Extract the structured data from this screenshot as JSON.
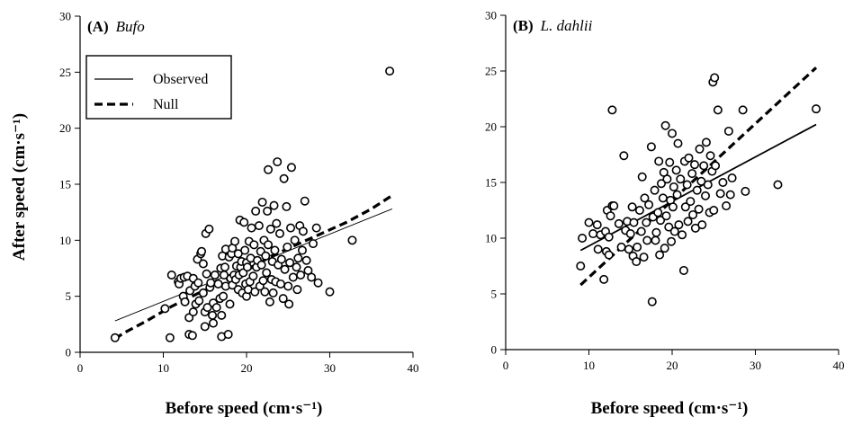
{
  "chart_data": [
    {
      "type": "scatter",
      "panel_label": "(A)",
      "panel_species": "Bufo",
      "xlabel": "Before speed (cm·s⁻¹)",
      "ylabel": "After speed (cm·s⁻¹)",
      "xlim": [
        0,
        40
      ],
      "ylim": [
        0,
        30
      ],
      "x_ticks": [
        "0",
        "10",
        "20",
        "30",
        "40"
      ],
      "y_ticks": [
        "0",
        "5",
        "10",
        "15",
        "20",
        "25",
        "30"
      ],
      "legend": {
        "position": "upper-left",
        "entries": [
          {
            "label": "Observed",
            "style": "solid"
          },
          {
            "label": "Null",
            "style": "dashed"
          }
        ]
      },
      "lines": [
        {
          "label": "Observed",
          "style": "solid",
          "x": [
            4.2,
            37.5
          ],
          "y": [
            2.8,
            12.8
          ]
        },
        {
          "label": "Null",
          "style": "dashed",
          "x": [
            4.2,
            5.2,
            8,
            11,
            14,
            17,
            20,
            23,
            26,
            29,
            32,
            35,
            37.5
          ],
          "y": [
            1.2,
            1.7,
            2.8,
            4.1,
            5.2,
            6.2,
            7.3,
            8.6,
            9.6,
            10.6,
            11.6,
            12.8,
            14.0
          ]
        }
      ],
      "points": [
        [
          4.2,
          1.3
        ],
        [
          10.2,
          3.9
        ],
        [
          10.8,
          1.3
        ],
        [
          11,
          6.9
        ],
        [
          11.8,
          6.3
        ],
        [
          11.9,
          6.1
        ],
        [
          12.1,
          6.6
        ],
        [
          12.4,
          5.0
        ],
        [
          12.5,
          6.7
        ],
        [
          12.6,
          4.5
        ],
        [
          12.9,
          6.8
        ],
        [
          13.1,
          1.6
        ],
        [
          13.1,
          3.1
        ],
        [
          13.2,
          5.5
        ],
        [
          13.5,
          1.5
        ],
        [
          13.6,
          3.6
        ],
        [
          13.6,
          6.6
        ],
        [
          13.8,
          5.9
        ],
        [
          13.9,
          4.3
        ],
        [
          14.1,
          8.3
        ],
        [
          14.2,
          6.2
        ],
        [
          14.3,
          4.6
        ],
        [
          14.5,
          8.8
        ],
        [
          14.6,
          9.0
        ],
        [
          14.8,
          5.3
        ],
        [
          14.8,
          7.9
        ],
        [
          15.0,
          2.3
        ],
        [
          15.0,
          3.6
        ],
        [
          15.1,
          10.6
        ],
        [
          15.2,
          7.0
        ],
        [
          15.3,
          4.0
        ],
        [
          15.5,
          11.0
        ],
        [
          15.6,
          5.8
        ],
        [
          15.7,
          6.2
        ],
        [
          15.9,
          3.3
        ],
        [
          16.0,
          2.6
        ],
        [
          16.0,
          4.4
        ],
        [
          16.2,
          6.9
        ],
        [
          16.4,
          4.0
        ],
        [
          16.6,
          6.1
        ],
        [
          16.8,
          4.8
        ],
        [
          16.9,
          7.5
        ],
        [
          17.0,
          1.4
        ],
        [
          17.0,
          3.3
        ],
        [
          17.1,
          8.6
        ],
        [
          17.2,
          5.0
        ],
        [
          17.3,
          6.9
        ],
        [
          17.4,
          7.6
        ],
        [
          17.5,
          9.2
        ],
        [
          17.5,
          5.9
        ],
        [
          17.8,
          1.6
        ],
        [
          17.9,
          8.5
        ],
        [
          18.0,
          4.3
        ],
        [
          18.1,
          6.6
        ],
        [
          18.2,
          8.8
        ],
        [
          18.3,
          6.0
        ],
        [
          18.3,
          9.3
        ],
        [
          18.5,
          6.9
        ],
        [
          18.6,
          9.9
        ],
        [
          18.7,
          6.5
        ],
        [
          18.8,
          7.7
        ],
        [
          19.0,
          8.8
        ],
        [
          19.0,
          5.6
        ],
        [
          19.1,
          6.9
        ],
        [
          19.2,
          11.8
        ],
        [
          19.3,
          7.6
        ],
        [
          19.4,
          8.1
        ],
        [
          19.5,
          5.3
        ],
        [
          19.6,
          7.1
        ],
        [
          19.7,
          11.6
        ],
        [
          19.8,
          9.1
        ],
        [
          19.9,
          6.1
        ],
        [
          20.0,
          8.0
        ],
        [
          20.0,
          5.0
        ],
        [
          20.1,
          7.6
        ],
        [
          20.2,
          5.6
        ],
        [
          20.3,
          9.9
        ],
        [
          20.4,
          6.3
        ],
        [
          20.5,
          8.4
        ],
        [
          20.6,
          11.1
        ],
        [
          20.8,
          6.8
        ],
        [
          20.9,
          9.6
        ],
        [
          21.0,
          5.4
        ],
        [
          21.1,
          12.6
        ],
        [
          21.2,
          7.6
        ],
        [
          21.3,
          8.2
        ],
        [
          21.5,
          11.3
        ],
        [
          21.6,
          5.9
        ],
        [
          21.7,
          9.0
        ],
        [
          21.8,
          7.8
        ],
        [
          21.9,
          13.4
        ],
        [
          22.0,
          6.4
        ],
        [
          22.1,
          10.0
        ],
        [
          22.2,
          5.4
        ],
        [
          22.3,
          8.6
        ],
        [
          22.4,
          7.1
        ],
        [
          22.5,
          12.6
        ],
        [
          22.6,
          9.6
        ],
        [
          22.6,
          16.3
        ],
        [
          22.8,
          4.5
        ],
        [
          22.9,
          11.0
        ],
        [
          23.0,
          6.5
        ],
        [
          23.1,
          8.1
        ],
        [
          23.2,
          5.3
        ],
        [
          23.3,
          13.1
        ],
        [
          23.4,
          9.1
        ],
        [
          23.5,
          6.3
        ],
        [
          23.6,
          11.5
        ],
        [
          23.7,
          17.0
        ],
        [
          23.8,
          7.8
        ],
        [
          24.0,
          10.6
        ],
        [
          24.1,
          6.1
        ],
        [
          24.2,
          8.3
        ],
        [
          24.4,
          4.8
        ],
        [
          24.5,
          15.5
        ],
        [
          24.6,
          7.4
        ],
        [
          24.8,
          13.0
        ],
        [
          24.9,
          9.4
        ],
        [
          25.0,
          5.9
        ],
        [
          25.1,
          4.3
        ],
        [
          25.2,
          8.0
        ],
        [
          25.3,
          11.1
        ],
        [
          25.4,
          16.5
        ],
        [
          25.6,
          6.7
        ],
        [
          25.8,
          10.0
        ],
        [
          26.0,
          7.6
        ],
        [
          26.1,
          5.6
        ],
        [
          26.2,
          8.4
        ],
        [
          26.4,
          11.3
        ],
        [
          26.5,
          6.9
        ],
        [
          26.7,
          9.1
        ],
        [
          26.8,
          10.8
        ],
        [
          27.0,
          13.5
        ],
        [
          27.2,
          8.2
        ],
        [
          27.4,
          7.3
        ],
        [
          27.8,
          6.7
        ],
        [
          28.0,
          9.7
        ],
        [
          28.4,
          11.1
        ],
        [
          28.6,
          6.2
        ],
        [
          30.0,
          5.4
        ],
        [
          32.7,
          10.0
        ],
        [
          37.2,
          25.1
        ]
      ]
    },
    {
      "type": "scatter",
      "panel_label": "(B)",
      "panel_species": "L. dahlii",
      "xlabel": "Before speed (cm·s⁻¹)",
      "ylabel": "",
      "xlim": [
        0,
        40
      ],
      "ylim": [
        0,
        30
      ],
      "x_ticks": [
        "0",
        "10",
        "20",
        "30",
        "40"
      ],
      "y_ticks": [
        "0",
        "5",
        "10",
        "15",
        "20",
        "25",
        "30"
      ],
      "lines": [
        {
          "label": "Observed",
          "style": "solid",
          "x": [
            9,
            37.3
          ],
          "y": [
            8.9,
            20.2
          ]
        },
        {
          "label": "Null",
          "style": "dashed",
          "x": [
            9,
            37.3
          ],
          "y": [
            5.8,
            25.3
          ]
        }
      ],
      "points": [
        [
          9.0,
          7.5
        ],
        [
          9.2,
          10.0
        ],
        [
          10.0,
          11.4
        ],
        [
          10.5,
          10.4
        ],
        [
          11.0,
          11.2
        ],
        [
          11.1,
          9.0
        ],
        [
          11.4,
          10.3
        ],
        [
          11.8,
          6.3
        ],
        [
          12.0,
          10.6
        ],
        [
          12.1,
          8.8
        ],
        [
          12.2,
          12.5
        ],
        [
          12.4,
          8.5
        ],
        [
          12.4,
          10.1
        ],
        [
          12.6,
          12.0
        ],
        [
          12.8,
          21.5
        ],
        [
          12.8,
          12.9
        ],
        [
          13.0,
          12.9
        ],
        [
          13.6,
          11.3
        ],
        [
          13.9,
          9.2
        ],
        [
          14.2,
          17.4
        ],
        [
          14.4,
          10.7
        ],
        [
          14.6,
          11.5
        ],
        [
          14.8,
          9.0
        ],
        [
          15.0,
          10.4
        ],
        [
          15.2,
          12.8
        ],
        [
          15.3,
          8.4
        ],
        [
          15.4,
          11.4
        ],
        [
          15.7,
          7.9
        ],
        [
          15.8,
          9.2
        ],
        [
          16.1,
          12.5
        ],
        [
          16.3,
          10.6
        ],
        [
          16.4,
          15.5
        ],
        [
          16.6,
          8.3
        ],
        [
          16.7,
          13.6
        ],
        [
          16.9,
          11.4
        ],
        [
          17.0,
          9.8
        ],
        [
          17.2,
          13.0
        ],
        [
          17.5,
          18.2
        ],
        [
          17.6,
          4.3
        ],
        [
          17.7,
          11.9
        ],
        [
          17.9,
          14.3
        ],
        [
          18.0,
          9.8
        ],
        [
          18.1,
          10.5
        ],
        [
          18.3,
          12.3
        ],
        [
          18.4,
          16.9
        ],
        [
          18.5,
          8.5
        ],
        [
          18.6,
          11.6
        ],
        [
          18.7,
          14.9
        ],
        [
          18.9,
          13.6
        ],
        [
          19.0,
          15.9
        ],
        [
          19.1,
          9.1
        ],
        [
          19.2,
          20.1
        ],
        [
          19.3,
          12.0
        ],
        [
          19.4,
          15.3
        ],
        [
          19.6,
          11.0
        ],
        [
          19.7,
          16.8
        ],
        [
          19.8,
          13.4
        ],
        [
          19.9,
          9.7
        ],
        [
          20.0,
          19.4
        ],
        [
          20.1,
          12.8
        ],
        [
          20.2,
          14.6
        ],
        [
          20.3,
          10.6
        ],
        [
          20.5,
          16.1
        ],
        [
          20.6,
          13.9
        ],
        [
          20.7,
          18.5
        ],
        [
          20.8,
          11.2
        ],
        [
          21.0,
          15.3
        ],
        [
          21.2,
          10.3
        ],
        [
          21.4,
          7.1
        ],
        [
          21.5,
          16.9
        ],
        [
          21.6,
          12.8
        ],
        [
          21.8,
          14.8
        ],
        [
          21.9,
          11.5
        ],
        [
          22.0,
          17.2
        ],
        [
          22.2,
          13.3
        ],
        [
          22.4,
          15.8
        ],
        [
          22.5,
          12.1
        ],
        [
          22.7,
          16.6
        ],
        [
          22.8,
          10.9
        ],
        [
          23.0,
          14.3
        ],
        [
          23.2,
          12.6
        ],
        [
          23.3,
          18.0
        ],
        [
          23.5,
          15.1
        ],
        [
          23.6,
          11.2
        ],
        [
          23.8,
          16.5
        ],
        [
          24.0,
          13.8
        ],
        [
          24.1,
          18.6
        ],
        [
          24.3,
          14.8
        ],
        [
          24.5,
          12.3
        ],
        [
          24.6,
          17.4
        ],
        [
          24.8,
          16.0
        ],
        [
          24.9,
          24.0
        ],
        [
          25.0,
          12.5
        ],
        [
          25.1,
          24.4
        ],
        [
          25.2,
          16.5
        ],
        [
          25.5,
          21.5
        ],
        [
          25.8,
          14.0
        ],
        [
          26.1,
          15.0
        ],
        [
          26.5,
          12.9
        ],
        [
          26.8,
          19.6
        ],
        [
          27.0,
          13.9
        ],
        [
          27.2,
          15.4
        ],
        [
          28.5,
          21.5
        ],
        [
          28.8,
          14.2
        ],
        [
          32.7,
          14.8
        ],
        [
          37.3,
          21.6
        ]
      ]
    }
  ]
}
